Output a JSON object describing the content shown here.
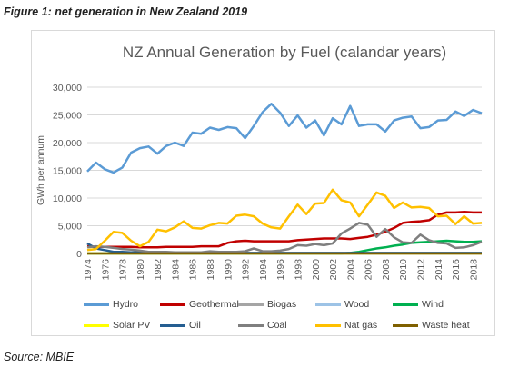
{
  "figure_caption": "Figure 1: net generation in New Zealand 2019",
  "source": "Source: MBIE",
  "chart_data": {
    "type": "line",
    "title": "NZ Annual Generation by Fuel (calandar years)",
    "ylabel": "GWh per annum",
    "xlabel": "",
    "ylim": [
      0,
      30000
    ],
    "yticks": [
      0,
      5000,
      10000,
      15000,
      20000,
      25000,
      30000
    ],
    "ytick_labels": [
      "0",
      "5,000",
      "10,000",
      "15,000",
      "20,000",
      "25,000",
      "30,000"
    ],
    "xtick_labels": [
      "1974",
      "1976",
      "1978",
      "1980",
      "1982",
      "1984",
      "1986",
      "1988",
      "1990",
      "1992",
      "1994",
      "1996",
      "1998",
      "2000",
      "2002",
      "2004",
      "2006",
      "2008",
      "2010",
      "2012",
      "2014",
      "2016",
      "2018"
    ],
    "grid": true,
    "legend_position": "bottom",
    "x": [
      1974,
      1975,
      1976,
      1977,
      1978,
      1979,
      1980,
      1981,
      1982,
      1983,
      1984,
      1985,
      1986,
      1987,
      1988,
      1989,
      1990,
      1991,
      1992,
      1993,
      1994,
      1995,
      1996,
      1997,
      1998,
      1999,
      2000,
      2001,
      2002,
      2003,
      2004,
      2005,
      2006,
      2007,
      2008,
      2009,
      2010,
      2011,
      2012,
      2013,
      2014,
      2015,
      2016,
      2017,
      2018,
      2019
    ],
    "series": [
      {
        "name": "Hydro",
        "color": "#5b9bd5",
        "values": [
          14800,
          16400,
          15200,
          14600,
          15500,
          18200,
          19000,
          19300,
          18000,
          19400,
          20000,
          19400,
          21800,
          21600,
          22700,
          22300,
          22800,
          22600,
          20800,
          23000,
          25500,
          27000,
          25400,
          23000,
          24900,
          22700,
          24000,
          21300,
          24400,
          23300,
          26600,
          23000,
          23300,
          23300,
          22000,
          24000,
          24500,
          24700,
          22600,
          22800,
          24000,
          24100,
          25600,
          24800,
          25900,
          25300
        ]
      },
      {
        "name": "Geothermal",
        "color": "#c00000",
        "values": [
          1300,
          1200,
          1200,
          1200,
          1200,
          1200,
          1100,
          1100,
          1100,
          1200,
          1200,
          1200,
          1200,
          1300,
          1300,
          1300,
          1900,
          2200,
          2300,
          2200,
          2200,
          2200,
          2200,
          2200,
          2400,
          2500,
          2600,
          2700,
          2700,
          2700,
          2600,
          2800,
          3000,
          3400,
          3900,
          4600,
          5500,
          5700,
          5800,
          6000,
          7000,
          7400,
          7400,
          7500,
          7400,
          7400
        ]
      },
      {
        "name": "Biogas",
        "color": "#a5a5a5",
        "values": [
          0,
          0,
          0,
          0,
          0,
          0,
          0,
          0,
          0,
          0,
          0,
          0,
          0,
          0,
          0,
          0,
          0,
          0,
          0,
          0,
          0,
          0,
          0,
          0,
          0,
          0,
          0,
          0,
          0,
          0,
          0,
          0,
          0,
          0,
          0,
          0,
          0,
          0,
          0,
          0,
          0,
          0,
          0,
          0,
          0,
          0
        ]
      },
      {
        "name": "Wood",
        "color": "#9dc3e6",
        "values": [
          0,
          0,
          0,
          0,
          0,
          0,
          0,
          0,
          0,
          0,
          0,
          0,
          0,
          0,
          0,
          0,
          0,
          0,
          0,
          0,
          0,
          0,
          0,
          0,
          0,
          0,
          0,
          0,
          0,
          0,
          0,
          0,
          0,
          0,
          0,
          0,
          0,
          0,
          0,
          0,
          0,
          0,
          0,
          0,
          0,
          0
        ]
      },
      {
        "name": "Wind",
        "color": "#00b050",
        "values": [
          0,
          0,
          0,
          0,
          0,
          0,
          0,
          0,
          0,
          0,
          0,
          0,
          0,
          0,
          0,
          0,
          0,
          0,
          0,
          0,
          0,
          0,
          0,
          0,
          0,
          0,
          0,
          0,
          0,
          0,
          100,
          300,
          600,
          900,
          1100,
          1400,
          1600,
          1900,
          2000,
          2100,
          2200,
          2300,
          2200,
          2100,
          2100,
          2200
        ]
      },
      {
        "name": "Solar PV",
        "color": "#ffff00",
        "values": [
          0,
          0,
          0,
          0,
          0,
          0,
          0,
          0,
          0,
          0,
          0,
          0,
          0,
          0,
          0,
          0,
          0,
          0,
          0,
          0,
          0,
          0,
          0,
          0,
          0,
          0,
          0,
          0,
          0,
          0,
          0,
          0,
          0,
          0,
          0,
          0,
          0,
          0,
          0,
          0,
          0,
          0,
          0,
          0,
          0,
          0
        ]
      },
      {
        "name": "Oil",
        "color": "#255e91",
        "values": [
          1800,
          900,
          600,
          300,
          300,
          200,
          200,
          200,
          100,
          100,
          100,
          100,
          100,
          100,
          100,
          100,
          100,
          100,
          100,
          100,
          100,
          100,
          100,
          100,
          100,
          100,
          100,
          100,
          100,
          100,
          100,
          100,
          100,
          100,
          100,
          100,
          100,
          100,
          100,
          100,
          100,
          100,
          100,
          100,
          100,
          100
        ]
      },
      {
        "name": "Coal",
        "color": "#7f7f7f",
        "values": [
          1100,
          1300,
          1200,
          1000,
          800,
          700,
          500,
          300,
          300,
          300,
          200,
          200,
          200,
          200,
          400,
          300,
          300,
          300,
          400,
          900,
          400,
          400,
          500,
          800,
          1500,
          1400,
          1700,
          1500,
          1800,
          3600,
          4500,
          5500,
          5200,
          3000,
          4400,
          2900,
          2000,
          1900,
          3400,
          2400,
          1900,
          1800,
          1000,
          1100,
          1500,
          2100
        ]
      },
      {
        "name": "Nat gas",
        "color": "#ffc000",
        "values": [
          600,
          800,
          2300,
          3900,
          3700,
          2300,
          1300,
          2100,
          4300,
          4000,
          4700,
          5800,
          4600,
          4500,
          5100,
          5500,
          5400,
          6800,
          7000,
          6700,
          5400,
          4700,
          4500,
          6700,
          8800,
          7100,
          9000,
          9100,
          11500,
          9600,
          9200,
          6700,
          8800,
          11000,
          10400,
          8200,
          9200,
          8300,
          8400,
          8200,
          6700,
          6800,
          5300,
          6700,
          5400,
          5500
        ]
      },
      {
        "name": "Waste heat",
        "color": "#7f6000",
        "values": [
          0,
          0,
          0,
          0,
          0,
          0,
          0,
          0,
          0,
          0,
          0,
          0,
          0,
          0,
          0,
          0,
          0,
          0,
          0,
          0,
          0,
          0,
          0,
          0,
          0,
          0,
          0,
          0,
          0,
          0,
          0,
          0,
          0,
          0,
          0,
          0,
          0,
          0,
          0,
          0,
          0,
          0,
          0,
          0,
          0,
          0
        ]
      }
    ]
  }
}
